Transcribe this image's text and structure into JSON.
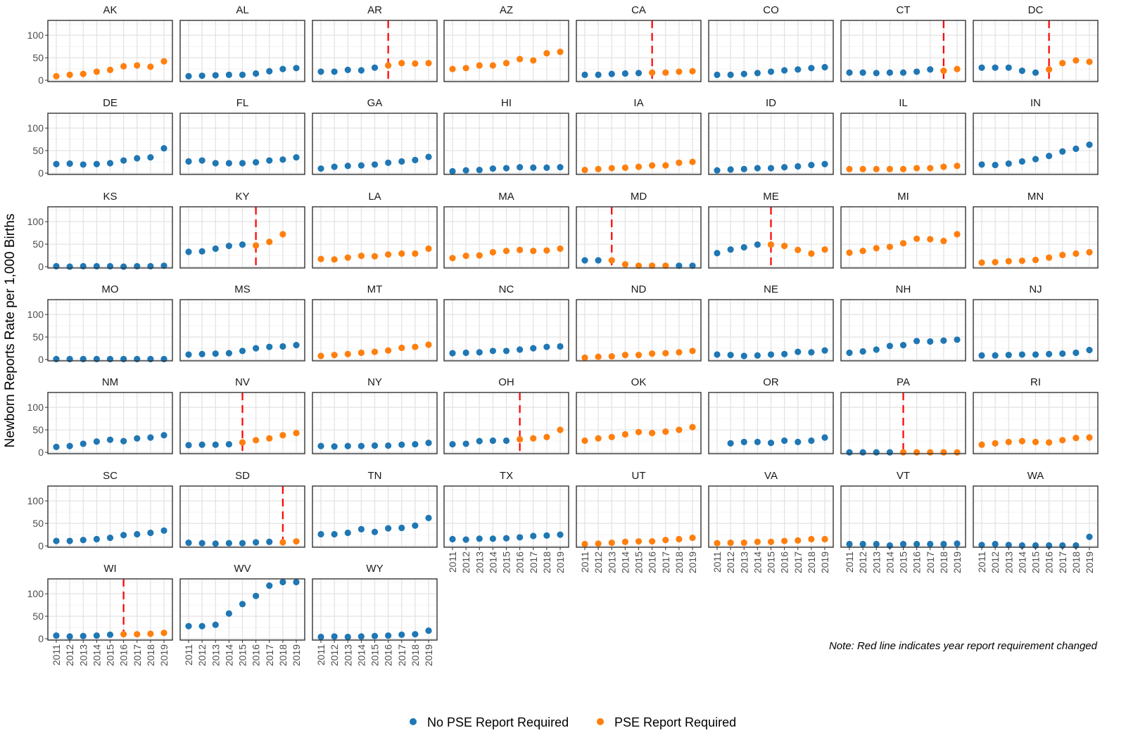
{
  "colors": {
    "no_pse": "#1f77b4",
    "pse": "#ff7f0e",
    "change_line": "#ff0000"
  },
  "chart_data": {
    "type": "scatter",
    "title": "",
    "xlabel": "",
    "ylabel": "Newborn Reports Rate per 1,000 Births",
    "x": [
      2011,
      2012,
      2013,
      2014,
      2015,
      2016,
      2017,
      2018,
      2019
    ],
    "x_tick_labels": [
      "2011",
      "2012",
      "2013",
      "2014",
      "2015",
      "2016",
      "2017",
      "2018",
      "2019"
    ],
    "ylim": [
      -3,
      133
    ],
    "y_ticks": [
      0,
      50,
      100
    ],
    "y_tick_labels": [
      "0",
      "50",
      "100"
    ],
    "grid": true,
    "legend": {
      "position": "bottom",
      "entries": [
        {
          "label": "No PSE Report Required",
          "code": "N"
        },
        {
          "label": "PSE Report Required",
          "code": "R"
        }
      ]
    },
    "note": "Note: Red line indicates year report requirement changed",
    "panels": [
      {
        "state": "AK",
        "values": [
          9,
          12,
          14,
          19,
          23,
          31,
          33,
          30,
          42
        ],
        "pse": "RRRRRRRRR",
        "change_year": null
      },
      {
        "state": "AL",
        "values": [
          9,
          10,
          11,
          12,
          12,
          15,
          20,
          25,
          27
        ],
        "pse": "NNNNNNNNN",
        "change_year": null
      },
      {
        "state": "AR",
        "values": [
          19,
          19,
          23,
          22,
          28,
          33,
          38,
          37,
          38
        ],
        "pse": "NNNNNRRRR",
        "change_year": 2016
      },
      {
        "state": "AZ",
        "values": [
          25,
          27,
          33,
          33,
          38,
          47,
          44,
          60,
          63
        ],
        "pse": "RRRRRRRRR",
        "change_year": null
      },
      {
        "state": "CA",
        "values": [
          12,
          12,
          14,
          15,
          16,
          17,
          17,
          19,
          20
        ],
        "pse": "NNNNNRRRR",
        "change_year": 2016
      },
      {
        "state": "CO",
        "values": [
          12,
          12,
          14,
          16,
          19,
          22,
          24,
          27,
          29
        ],
        "pse": "NNNNNNNNN",
        "change_year": null
      },
      {
        "state": "CT",
        "values": [
          17,
          17,
          16,
          17,
          17,
          19,
          24,
          21,
          25
        ],
        "pse": "NNNNNNNRR",
        "change_year": 2018
      },
      {
        "state": "DC",
        "values": [
          28,
          28,
          28,
          21,
          17,
          24,
          38,
          44,
          41
        ],
        "pse": "NNNNNRRRR",
        "change_year": 2016
      },
      {
        "state": "DE",
        "values": [
          20,
          21,
          19,
          20,
          22,
          28,
          33,
          35,
          55
        ],
        "pse": "NNNNNNNNN",
        "change_year": null
      },
      {
        "state": "FL",
        "values": [
          26,
          28,
          22,
          22,
          22,
          24,
          28,
          30,
          35
        ],
        "pse": "NNNNNNNNN",
        "change_year": null
      },
      {
        "state": "GA",
        "values": [
          10,
          14,
          16,
          17,
          19,
          23,
          26,
          29,
          36
        ],
        "pse": "NNNNNNNNN",
        "change_year": null
      },
      {
        "state": "HI",
        "values": [
          4,
          6,
          7,
          10,
          11,
          13,
          12,
          12,
          13
        ],
        "pse": "NNNNNNNNN",
        "change_year": null
      },
      {
        "state": "IA",
        "values": [
          7,
          9,
          11,
          12,
          14,
          17,
          17,
          23,
          25
        ],
        "pse": "RRRRRRRRR",
        "change_year": null
      },
      {
        "state": "ID",
        "values": [
          6,
          8,
          9,
          11,
          11,
          13,
          15,
          18,
          20
        ],
        "pse": "NNNNNNNNN",
        "change_year": null
      },
      {
        "state": "IL",
        "values": [
          9,
          9,
          9,
          9,
          9,
          11,
          11,
          14,
          16
        ],
        "pse": "RRRRRRRRR",
        "change_year": null
      },
      {
        "state": "IN",
        "values": [
          19,
          18,
          21,
          26,
          31,
          38,
          48,
          54,
          63
        ],
        "pse": "NNNNNNNNN",
        "change_year": null
      },
      {
        "state": "KS",
        "values": [
          1,
          0,
          1,
          1,
          1,
          0,
          1,
          1,
          2
        ],
        "pse": "NNNNNNNNN",
        "change_year": null
      },
      {
        "state": "KY",
        "values": [
          33,
          34,
          40,
          46,
          49,
          47,
          55,
          72,
          null
        ],
        "pse": "NNNNNRRRR",
        "change_year": 2016
      },
      {
        "state": "LA",
        "values": [
          17,
          16,
          20,
          24,
          23,
          27,
          29,
          29,
          40
        ],
        "pse": "RRRRRRRRR",
        "change_year": null
      },
      {
        "state": "MA",
        "values": [
          19,
          24,
          25,
          32,
          35,
          37,
          35,
          36,
          40
        ],
        "pse": "RRRRRRRRR",
        "change_year": null
      },
      {
        "state": "MD",
        "values": [
          14,
          14,
          14,
          5,
          2,
          2,
          2,
          2,
          2
        ],
        "pse": "NNRRRRRNN",
        "change_year": 2013
      },
      {
        "state": "ME",
        "values": [
          30,
          38,
          43,
          49,
          49,
          46,
          37,
          29,
          38
        ],
        "pse": "NNNNRRRRR",
        "change_year": 2015
      },
      {
        "state": "MI",
        "values": [
          31,
          35,
          41,
          44,
          52,
          62,
          61,
          57,
          72
        ],
        "pse": "RRRRRRRRR",
        "change_year": null
      },
      {
        "state": "MN",
        "values": [
          9,
          10,
          12,
          13,
          15,
          20,
          26,
          29,
          32
        ],
        "pse": "RRRRRRRRR",
        "change_year": null
      },
      {
        "state": "MO",
        "values": [
          1,
          1,
          1,
          1,
          1,
          1,
          1,
          1,
          1
        ],
        "pse": "NNNNNNNNN",
        "change_year": null
      },
      {
        "state": "MS",
        "values": [
          11,
          12,
          13,
          14,
          19,
          25,
          28,
          29,
          32
        ],
        "pse": "NNNNNNNNN",
        "change_year": null
      },
      {
        "state": "MT",
        "values": [
          8,
          10,
          12,
          15,
          17,
          20,
          26,
          28,
          33
        ],
        "pse": "RRRRRRRRR",
        "change_year": null
      },
      {
        "state": "NC",
        "values": [
          14,
          15,
          16,
          19,
          19,
          22,
          25,
          28,
          29
        ],
        "pse": "NNNNNNNNN",
        "change_year": null
      },
      {
        "state": "ND",
        "values": [
          4,
          6,
          7,
          10,
          10,
          13,
          14,
          16,
          19
        ],
        "pse": "RRRRRRRRR",
        "change_year": null
      },
      {
        "state": "NE",
        "values": [
          11,
          10,
          8,
          9,
          11,
          12,
          17,
          16,
          20
        ],
        "pse": "NNNNNNNNN",
        "change_year": null
      },
      {
        "state": "NH",
        "values": [
          15,
          18,
          22,
          30,
          32,
          41,
          40,
          42,
          44
        ],
        "pse": "NNNNNNNNN",
        "change_year": null
      },
      {
        "state": "NJ",
        "values": [
          9,
          9,
          10,
          11,
          11,
          12,
          13,
          15,
          21
        ],
        "pse": "NNNNNNNNN",
        "change_year": null
      },
      {
        "state": "NM",
        "values": [
          12,
          14,
          19,
          24,
          28,
          25,
          31,
          33,
          38
        ],
        "pse": "NNNNNNNNN",
        "change_year": null
      },
      {
        "state": "NV",
        "values": [
          16,
          17,
          17,
          18,
          22,
          27,
          31,
          38,
          43
        ],
        "pse": "NNNNRRRRR",
        "change_year": 2015
      },
      {
        "state": "NY",
        "values": [
          14,
          13,
          14,
          14,
          15,
          15,
          17,
          18,
          21
        ],
        "pse": "NNNNNNNNN",
        "change_year": null
      },
      {
        "state": "OH",
        "values": [
          18,
          19,
          25,
          26,
          26,
          29,
          31,
          34,
          50
        ],
        "pse": "NNNNNRRRR",
        "change_year": 2016
      },
      {
        "state": "OK",
        "values": [
          26,
          31,
          34,
          40,
          45,
          43,
          46,
          50,
          56
        ],
        "pse": "RRRRRRRRR",
        "change_year": null
      },
      {
        "state": "OR",
        "values": [
          null,
          20,
          23,
          23,
          21,
          26,
          23,
          26,
          33
        ],
        "pse": "NNNNNNNNN",
        "change_year": null
      },
      {
        "state": "PA",
        "values": [
          0,
          0,
          0,
          0,
          0,
          0,
          0,
          0,
          0
        ],
        "pse": "NNNNRRRRR",
        "change_year": 2015
      },
      {
        "state": "RI",
        "values": [
          17,
          20,
          23,
          25,
          23,
          22,
          27,
          32,
          33
        ],
        "pse": "RRRRRRRRR",
        "change_year": null
      },
      {
        "state": "SC",
        "values": [
          11,
          11,
          13,
          15,
          18,
          24,
          26,
          29,
          34
        ],
        "pse": "NNNNNNNNN",
        "change_year": null
      },
      {
        "state": "SD",
        "values": [
          7,
          6,
          5,
          6,
          6,
          8,
          9,
          8,
          10
        ],
        "pse": "NNNNNNNRR",
        "change_year": 2018
      },
      {
        "state": "TN",
        "values": [
          26,
          26,
          29,
          37,
          31,
          39,
          40,
          45,
          62
        ],
        "pse": "NNNNNNNNN",
        "change_year": null
      },
      {
        "state": "TX",
        "values": [
          15,
          14,
          16,
          16,
          17,
          19,
          22,
          23,
          25
        ],
        "pse": "NNNNNNNNN",
        "change_year": null
      },
      {
        "state": "UT",
        "values": [
          4,
          5,
          7,
          9,
          10,
          10,
          13,
          15,
          18
        ],
        "pse": "RRRRRRRRR",
        "change_year": null
      },
      {
        "state": "VA",
        "values": [
          6,
          7,
          7,
          9,
          9,
          11,
          12,
          15,
          15
        ],
        "pse": "RRRRRRRRR",
        "change_year": null
      },
      {
        "state": "VT",
        "values": [
          4,
          4,
          4,
          1,
          4,
          4,
          4,
          4,
          5
        ],
        "pse": "NNNNNNNNN",
        "change_year": null
      },
      {
        "state": "WA",
        "values": [
          2,
          4,
          2,
          1,
          1,
          1,
          1,
          1,
          20
        ],
        "pse": "NNNNNNNNN",
        "change_year": null
      },
      {
        "state": "WI",
        "values": [
          7,
          5,
          6,
          7,
          9,
          10,
          10,
          11,
          13
        ],
        "pse": "NNNNNRRRR",
        "change_year": 2016
      },
      {
        "state": "WV",
        "values": [
          28,
          28,
          31,
          56,
          77,
          95,
          118,
          126,
          126
        ],
        "pse": "NNNNNNNNN",
        "change_year": null
      },
      {
        "state": "WY",
        "values": [
          4,
          5,
          4,
          5,
          6,
          7,
          9,
          10,
          18
        ],
        "pse": "NNNNNNNNN",
        "change_year": null
      }
    ]
  }
}
